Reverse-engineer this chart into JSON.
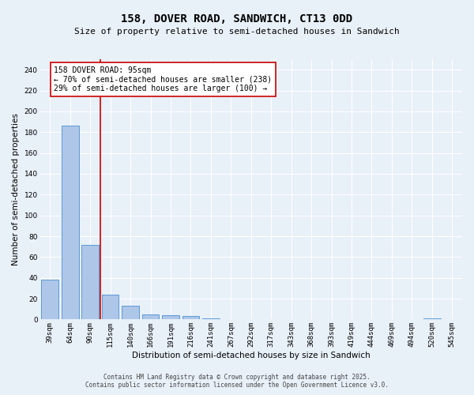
{
  "title": "158, DOVER ROAD, SANDWICH, CT13 0DD",
  "subtitle": "Size of property relative to semi-detached houses in Sandwich",
  "xlabel": "Distribution of semi-detached houses by size in Sandwich",
  "ylabel": "Number of semi-detached properties",
  "categories": [
    "39sqm",
    "64sqm",
    "90sqm",
    "115sqm",
    "140sqm",
    "166sqm",
    "191sqm",
    "216sqm",
    "241sqm",
    "267sqm",
    "292sqm",
    "317sqm",
    "343sqm",
    "368sqm",
    "393sqm",
    "419sqm",
    "444sqm",
    "469sqm",
    "494sqm",
    "520sqm",
    "545sqm"
  ],
  "values": [
    38,
    186,
    72,
    24,
    13,
    5,
    4,
    3,
    1,
    0,
    0,
    0,
    0,
    0,
    0,
    0,
    0,
    0,
    0,
    1,
    0
  ],
  "bar_color": "#aec6e8",
  "bar_edge_color": "#5b9bd5",
  "vline_x": 2.5,
  "vline_color": "#cc0000",
  "annotation_text": "158 DOVER ROAD: 95sqm\n← 70% of semi-detached houses are smaller (238)\n29% of semi-detached houses are larger (100) →",
  "annotation_box_color": "#ffffff",
  "annotation_box_edgecolor": "#cc0000",
  "ylim": [
    0,
    250
  ],
  "yticks": [
    0,
    20,
    40,
    60,
    80,
    100,
    120,
    140,
    160,
    180,
    200,
    220,
    240
  ],
  "footer_line1": "Contains HM Land Registry data © Crown copyright and database right 2025.",
  "footer_line2": "Contains public sector information licensed under the Open Government Licence v3.0.",
  "bg_color": "#e8f0f8",
  "plot_bg_color": "#e8f0f8",
  "grid_color": "#ffffff",
  "title_fontsize": 10,
  "subtitle_fontsize": 8,
  "axis_label_fontsize": 7.5,
  "tick_label_fontsize": 6.5,
  "annotation_fontsize": 7,
  "footer_fontsize": 5.5
}
